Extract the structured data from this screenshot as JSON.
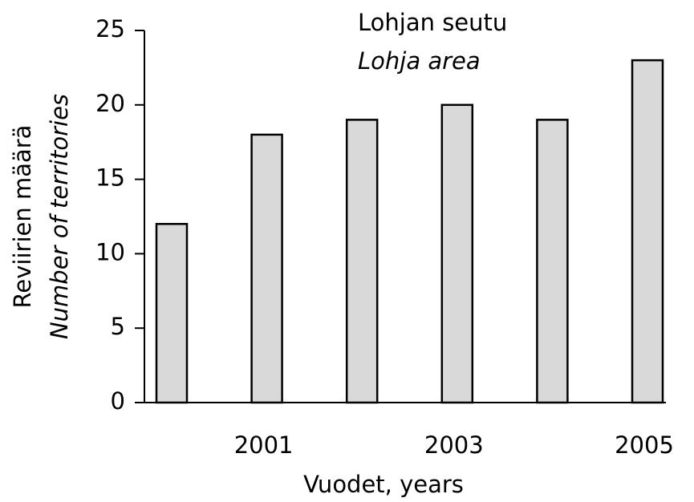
{
  "chart_data": {
    "type": "bar",
    "title": "Lohjan seutu",
    "subtitle": "Lohja area",
    "xlabel": "Vuodet, years",
    "ylabel": [
      "Reviirien määrä",
      "Number of  territories"
    ],
    "categories": [
      null,
      "2001",
      null,
      "2003",
      null,
      "2005"
    ],
    "values": [
      12,
      18,
      19,
      20,
      19,
      23
    ],
    "color": "#d9d9d9",
    "ylim": [
      0,
      25
    ],
    "yticks": [
      0,
      5,
      10,
      15,
      20,
      25
    ],
    "grid": false
  }
}
